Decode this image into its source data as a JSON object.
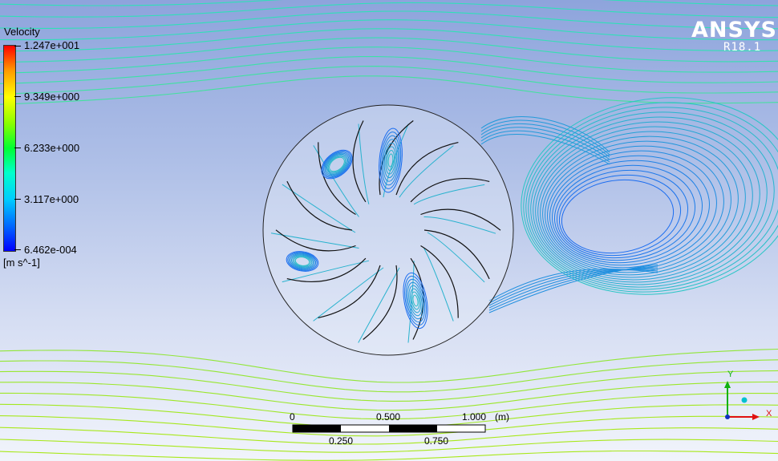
{
  "legend": {
    "title": "Velocity",
    "labels": [
      "1.247e+001",
      "9.349e+000",
      "6.233e+000",
      "3.117e+000",
      "6.462e-004"
    ],
    "unit": "[m s^-1]"
  },
  "brand": {
    "logo": "ANSYS",
    "version": "R18.1"
  },
  "scale_bar": {
    "top_labels": [
      "0",
      "0.500",
      "1.000"
    ],
    "bottom_labels": [
      "0.250",
      "0.750"
    ],
    "unit": "(m)"
  },
  "axes": {
    "x": "X",
    "y": "Y"
  },
  "colors": {
    "stream_top": "#2fe0b8",
    "stream_bottom": "#a8e81a",
    "stream_slow": "#1a6cf0",
    "blade": "#111111",
    "axis_x": "#e01010",
    "axis_y": "#10b010",
    "axis_z": "#00c0d0"
  }
}
